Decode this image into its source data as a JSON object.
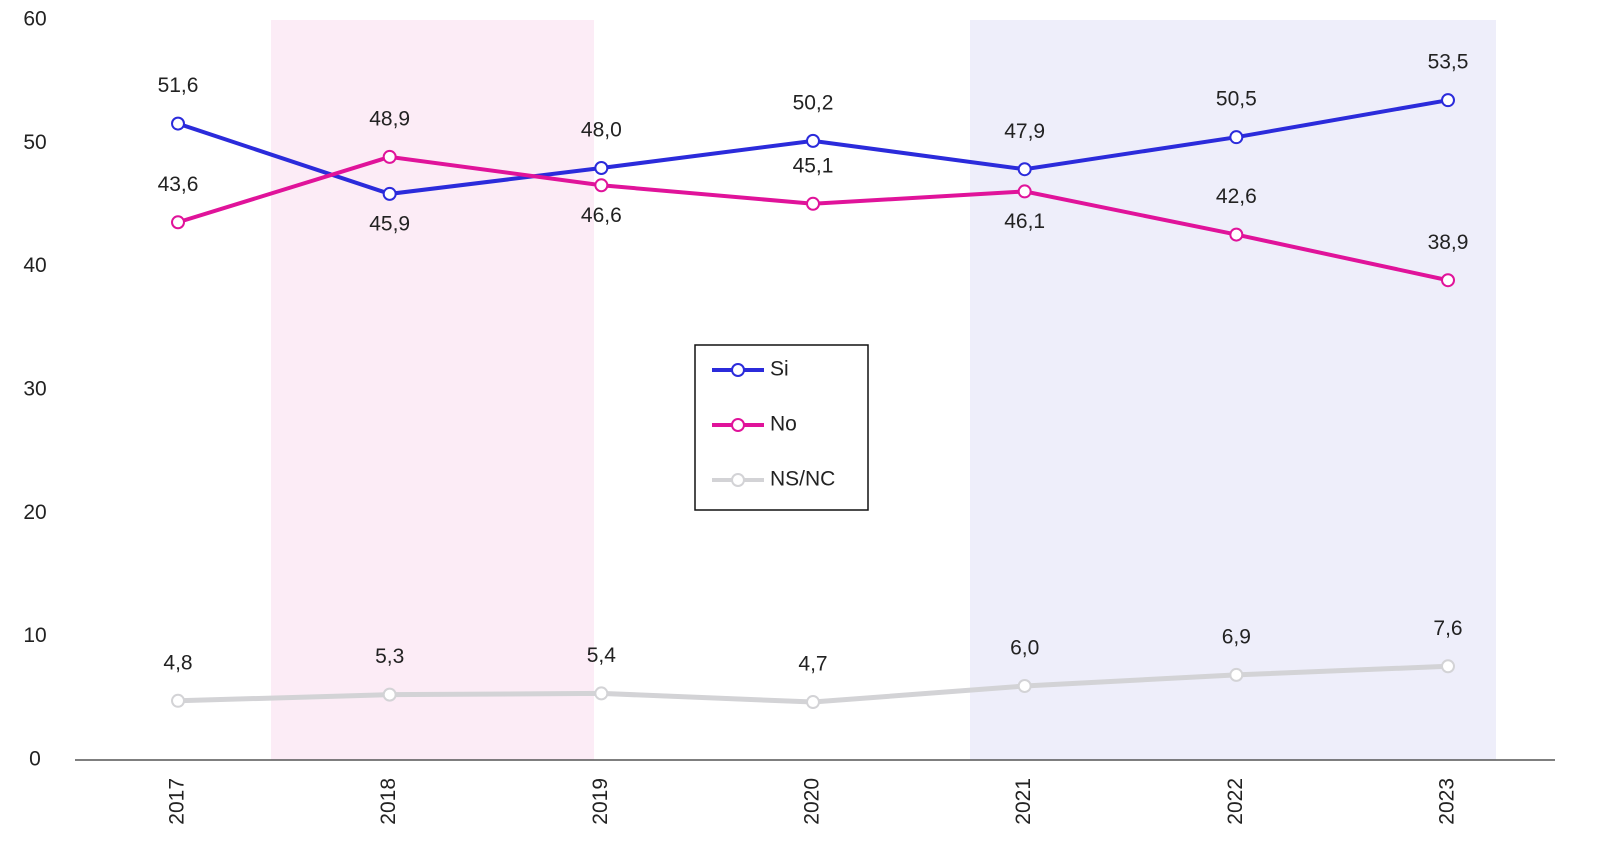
{
  "chart_data": {
    "type": "line",
    "categories": [
      "2017",
      "2018",
      "2019",
      "2020",
      "2021",
      "2022",
      "2023"
    ],
    "series": [
      {
        "name": "Si",
        "color": "#2b2bdb",
        "values": [
          51.6,
          45.9,
          48.0,
          50.2,
          47.9,
          50.5,
          53.5
        ],
        "value_labels": [
          "51,6",
          "45,9",
          "48,0",
          "50,2",
          "47,9",
          "50,5",
          "53,5"
        ]
      },
      {
        "name": "No",
        "color": "#e0139a",
        "values": [
          43.6,
          48.9,
          46.6,
          45.1,
          46.1,
          42.6,
          38.9
        ],
        "value_labels": [
          "43,6",
          "48,9",
          "46,6",
          "45,1",
          "46,1",
          "42,6",
          "38,9"
        ]
      },
      {
        "name": "NS/NC",
        "color": "#d3d3d6",
        "values": [
          4.8,
          5.3,
          5.4,
          4.7,
          6.0,
          6.9,
          7.6
        ],
        "value_labels": [
          "4,8",
          "5,3",
          "5,4",
          "4,7",
          "6,0",
          "6,9",
          "7,6"
        ]
      }
    ],
    "ylim": [
      0,
      60
    ],
    "yticks": [
      0,
      10,
      20,
      30,
      40,
      50,
      60
    ],
    "grid": false
  }
}
